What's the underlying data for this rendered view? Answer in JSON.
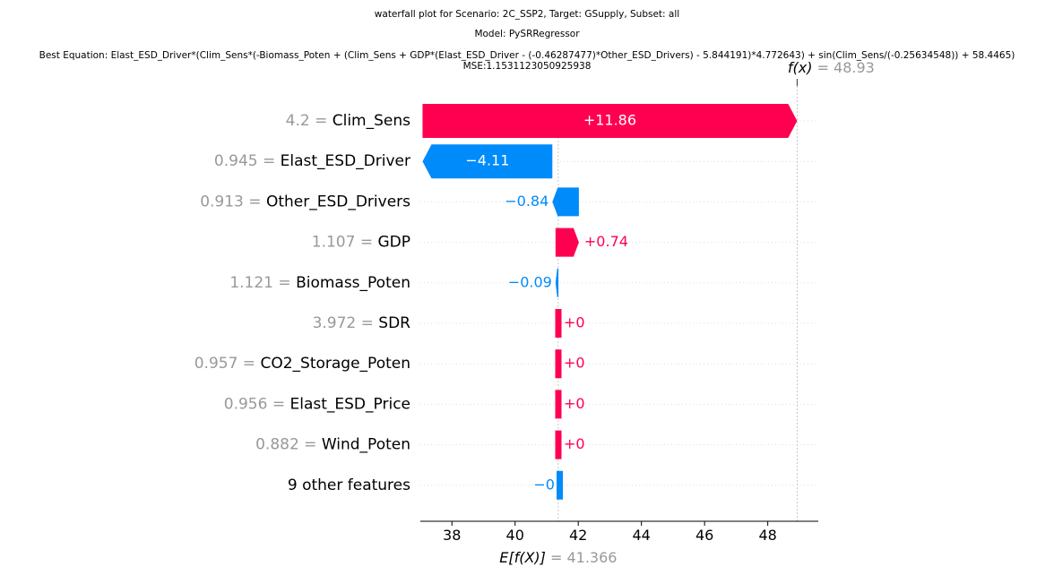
{
  "title": {
    "line1": "waterfall plot for Scenario: 2C_SSP2, Target: GSupply, Subset: all",
    "line2": "Model: PySRRegressor",
    "line3": "Best Equation: Elast_ESD_Driver*(Clim_Sens*(-Biomass_Poten + (Clim_Sens + GDP*(Elast_ESD_Driver - (-0.46287477)*Other_ESD_Drivers) - 5.844191)*4.772643) + sin(Clim_Sens/(-0.25634548)) + 58.4465)",
    "line4": "MSE:1.1531123050925938"
  },
  "chart_data": {
    "type": "waterfall",
    "base_value": 41.366,
    "base_label": "E[f(X)]",
    "base_value_text": "= 41.366",
    "final_value": 48.93,
    "final_label": "f(x)",
    "final_value_text": "= 48.93",
    "xlim": [
      37.0,
      49.6
    ],
    "xticks": [
      38,
      40,
      42,
      44,
      46,
      48
    ],
    "features": [
      {
        "name": "Clim_Sens",
        "value": "4.2",
        "contribution": 11.86,
        "label": "+11.86"
      },
      {
        "name": "Elast_ESD_Driver",
        "value": "0.945",
        "contribution": -4.11,
        "label": "−4.11"
      },
      {
        "name": "Other_ESD_Drivers",
        "value": "0.913",
        "contribution": -0.84,
        "label": "−0.84"
      },
      {
        "name": "GDP",
        "value": "1.107",
        "contribution": 0.74,
        "label": "+0.74"
      },
      {
        "name": "Biomass_Poten",
        "value": "1.121",
        "contribution": -0.09,
        "label": "−0.09"
      },
      {
        "name": "SDR",
        "value": "3.972",
        "contribution": 0.0,
        "label": "+0"
      },
      {
        "name": "CO2_Storage_Poten",
        "value": "0.957",
        "contribution": 0.0,
        "label": "+0"
      },
      {
        "name": "Elast_ESD_Price",
        "value": "0.956",
        "contribution": 0.0,
        "label": "+0"
      },
      {
        "name": "Wind_Poten",
        "value": "0.882",
        "contribution": 0.0,
        "label": "+0"
      },
      {
        "name": "9 other features",
        "value": "",
        "contribution": 0.0,
        "label": "−0"
      }
    ],
    "colors": {
      "positive": "#ff0051",
      "negative": "#008bfb",
      "muted": "#999999"
    }
  }
}
